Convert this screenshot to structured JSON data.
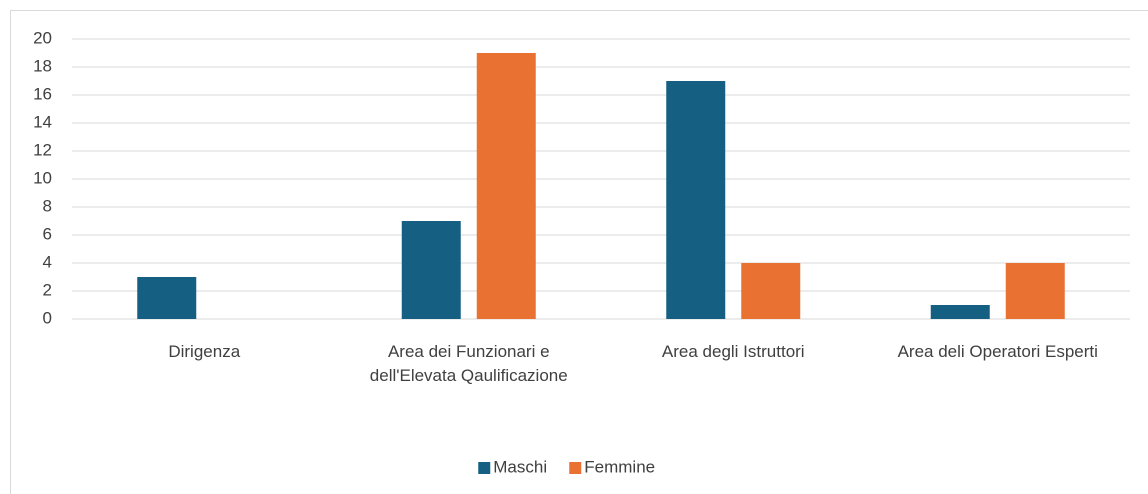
{
  "chart_data": {
    "type": "bar",
    "categories": [
      "Dirigenza",
      "Area dei Funzionari e dell'Elevata Qaulificazione",
      "Area degli Istruttori",
      "Area deli Operatori Esperti"
    ],
    "series": [
      {
        "name": "Maschi",
        "color": "#156082",
        "values": [
          3,
          7,
          17,
          1
        ]
      },
      {
        "name": "Femmine",
        "color": "#e97132",
        "values": [
          0,
          19,
          4,
          4
        ]
      }
    ],
    "ylim": [
      0,
      20
    ],
    "yticks": [
      0,
      2,
      4,
      6,
      8,
      10,
      12,
      14,
      16,
      18,
      20
    ],
    "grid": true,
    "legend": "bottom"
  }
}
